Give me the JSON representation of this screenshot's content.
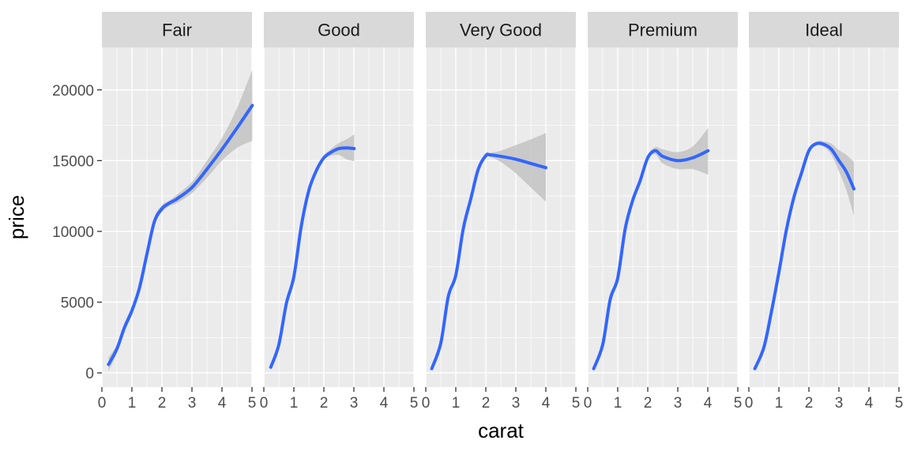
{
  "chart_data": {
    "type": "line",
    "layout": "faceted",
    "facet_variable": "cut",
    "xlabel": "carat",
    "ylabel": "price",
    "xlim": [
      0,
      5
    ],
    "ylim": [
      -1000,
      23000
    ],
    "x_ticks": [
      0,
      1,
      2,
      3,
      4,
      5
    ],
    "y_ticks": [
      0,
      5000,
      10000,
      15000,
      20000
    ],
    "y_tick_labels": [
      "0",
      "5000",
      "10000",
      "15000",
      "20000"
    ],
    "grid": true,
    "colors": {
      "line": "#3366ff",
      "ribbon": "#bdbdbd",
      "panel_bg": "#ebebeb",
      "strip_bg": "#d9d9d9",
      "grid": "#ffffff"
    },
    "facets": [
      {
        "name": "Fair",
        "x": [
          0.22,
          0.5,
          0.75,
          1.0,
          1.25,
          1.5,
          1.75,
          2.0,
          2.25,
          2.5,
          3.0,
          3.5,
          4.0,
          4.5,
          5.01
        ],
        "y": [
          600,
          1700,
          3200,
          4400,
          6000,
          8400,
          10700,
          11600,
          12000,
          12300,
          13100,
          14400,
          15800,
          17300,
          18900
        ],
        "lower": [
          100,
          1400,
          2900,
          4100,
          5700,
          8100,
          10400,
          11350,
          11800,
          12000,
          12700,
          13800,
          15000,
          15900,
          16400
        ],
        "upper": [
          1100,
          2000,
          3500,
          4700,
          6300,
          8700,
          11000,
          11850,
          12200,
          12600,
          13500,
          15000,
          16600,
          18700,
          21400
        ]
      },
      {
        "name": "Good",
        "x": [
          0.23,
          0.5,
          0.75,
          1.0,
          1.25,
          1.5,
          1.75,
          2.0,
          2.25,
          2.5,
          2.75,
          3.01
        ],
        "y": [
          400,
          2000,
          4900,
          6800,
          10400,
          12900,
          14300,
          15200,
          15600,
          15850,
          15900,
          15850
        ],
        "lower": [
          300,
          1900,
          4800,
          6700,
          10300,
          12800,
          14200,
          15050,
          15350,
          15400,
          15100,
          14950
        ],
        "upper": [
          500,
          2100,
          5000,
          6900,
          10500,
          13000,
          14400,
          15350,
          15850,
          16250,
          16500,
          16850
        ]
      },
      {
        "name": "Very Good",
        "x": [
          0.2,
          0.5,
          0.75,
          1.0,
          1.25,
          1.5,
          1.75,
          2.0,
          2.15,
          2.5,
          3.0,
          3.5,
          4.0
        ],
        "y": [
          300,
          2100,
          5400,
          6900,
          10200,
          12300,
          14400,
          15350,
          15400,
          15300,
          15100,
          14800,
          14500
        ],
        "lower": [
          200,
          2000,
          5300,
          6800,
          10100,
          12200,
          14250,
          15150,
          15250,
          14900,
          14100,
          13100,
          12100
        ],
        "upper": [
          400,
          2200,
          5500,
          7000,
          10300,
          12400,
          14550,
          15550,
          15550,
          15700,
          16100,
          16500,
          16950
        ]
      },
      {
        "name": "Premium",
        "x": [
          0.2,
          0.5,
          0.75,
          1.0,
          1.25,
          1.5,
          1.75,
          2.0,
          2.25,
          2.5,
          3.0,
          3.5,
          4.01
        ],
        "y": [
          300,
          2000,
          5200,
          6700,
          10200,
          12200,
          13600,
          15200,
          15700,
          15300,
          15000,
          15200,
          15700
        ],
        "lower": [
          200,
          1900,
          5100,
          6600,
          10100,
          12100,
          13500,
          15050,
          15450,
          14800,
          14400,
          14400,
          14000
        ],
        "upper": [
          400,
          2100,
          5300,
          6800,
          10300,
          12300,
          13700,
          15350,
          15950,
          15800,
          15600,
          16000,
          17300
        ]
      },
      {
        "name": "Ideal",
        "x": [
          0.2,
          0.5,
          0.75,
          1.0,
          1.25,
          1.5,
          1.75,
          2.0,
          2.25,
          2.5,
          2.75,
          3.0,
          3.25,
          3.5
        ],
        "y": [
          300,
          1800,
          4300,
          7100,
          10100,
          12400,
          14100,
          15700,
          16200,
          16150,
          15800,
          15000,
          14200,
          13000
        ],
        "lower": [
          200,
          1700,
          4200,
          7000,
          10000,
          12300,
          13950,
          15550,
          16050,
          15950,
          15400,
          14250,
          12900,
          11100
        ],
        "upper": [
          400,
          1900,
          4400,
          7200,
          10200,
          12500,
          14250,
          15850,
          16350,
          16350,
          16200,
          15750,
          15400,
          14900
        ]
      }
    ]
  }
}
